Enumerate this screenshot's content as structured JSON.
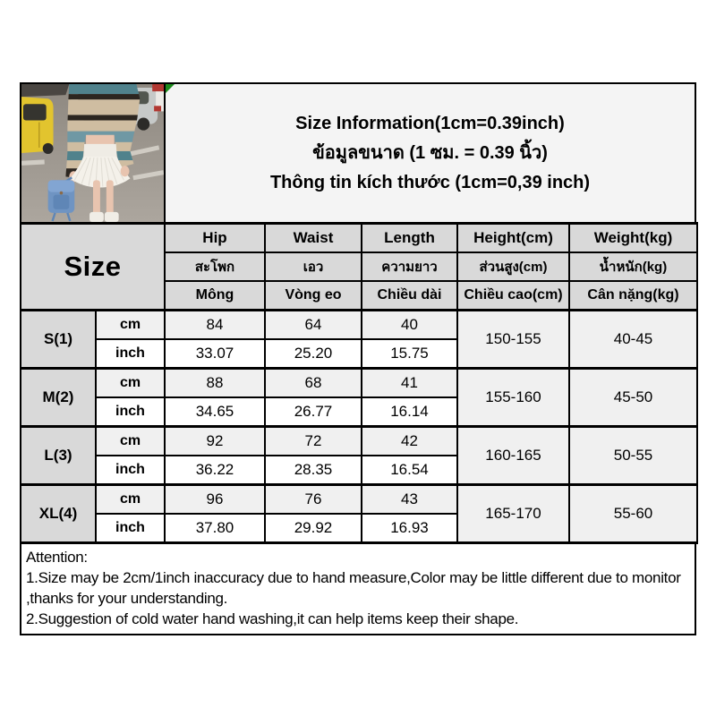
{
  "header": {
    "title_en": "Size Information(1cm=0.39inch)",
    "title_th": "ข้อมูลขนาด (1 ซม. = 0.39 นิ้ว)",
    "title_vi": "Thông tin kích thước (1cm=0,39 inch)",
    "size_label": "Size"
  },
  "table": {
    "columns": {
      "en": [
        "Hip",
        "Waist",
        "Length",
        "Height(cm)",
        "Weight(kg)"
      ],
      "th": [
        "สะโพก",
        "เอว",
        "ความยาว",
        "ส่วนสูง(cm)",
        "น้ำหนัก(kg)"
      ],
      "vi": [
        "Mông",
        "Vòng eo",
        "Chiều dài",
        "Chiều cao(cm)",
        "Cân nặng(kg)"
      ]
    },
    "unit_labels": [
      "cm",
      "inch"
    ],
    "sizes": [
      {
        "label": "S(1)",
        "cm": [
          "84",
          "64",
          "40"
        ],
        "inch": [
          "33.07",
          "25.20",
          "15.75"
        ],
        "height": "150-155",
        "weight": "40-45"
      },
      {
        "label": "M(2)",
        "cm": [
          "88",
          "68",
          "41"
        ],
        "inch": [
          "34.65",
          "26.77",
          "16.14"
        ],
        "height": "155-160",
        "weight": "45-50"
      },
      {
        "label": "L(3)",
        "cm": [
          "92",
          "72",
          "42"
        ],
        "inch": [
          "36.22",
          "28.35",
          "16.54"
        ],
        "height": "160-165",
        "weight": "50-55"
      },
      {
        "label": "XL(4)",
        "cm": [
          "96",
          "76",
          "43"
        ],
        "inch": [
          "37.80",
          "29.92",
          "16.93"
        ],
        "height": "165-170",
        "weight": "55-60"
      }
    ]
  },
  "attention": {
    "heading": "Attention:",
    "line1": "1.Size may be 2cm/1inch inaccuracy due to hand measure,Color may be little different due to monitor ,thanks for your understanding.",
    "line2": "2.Suggestion of cold water hand washing,it can help items keep their shape."
  },
  "colors": {
    "border": "#000000",
    "header_cell_bg": "#d9d9d9",
    "light_cell_bg": "#f0f0f0",
    "title_box_bg": "#f4f4f4",
    "marker_green": "#1c8a1c"
  },
  "photo": {
    "asphalt_top": "#8e8880",
    "asphalt_bottom": "#aca69e",
    "line_paint": "#d9d5cd",
    "dark_car": "#4a4642",
    "yellow_car": "#e2c42e",
    "yellow_car_trim": "#b89a1f",
    "car_window": "#35342f",
    "silver_car": "#c6c9c8",
    "silver_car_window": "#51564f",
    "tire": "#2c2b28",
    "red_car": "#b23832",
    "white_car": "#eceae6",
    "sweater_teal_dark": "#50828c",
    "sweater_teal": "#6f98a4",
    "sweater_beige": "#cfbda1",
    "sweater_dark": "#2c2620",
    "skin": "#e8c4af",
    "skirt": "#f4f1ea",
    "skirt_band": "#efece5",
    "pleat_line": "#d9d5cc",
    "boots": "#f0ede6",
    "bag": "#6f94c2",
    "bag_dark": "#5f86b6",
    "bag_flap": "#82a5d2",
    "bag_button": "#8a6b4a"
  }
}
